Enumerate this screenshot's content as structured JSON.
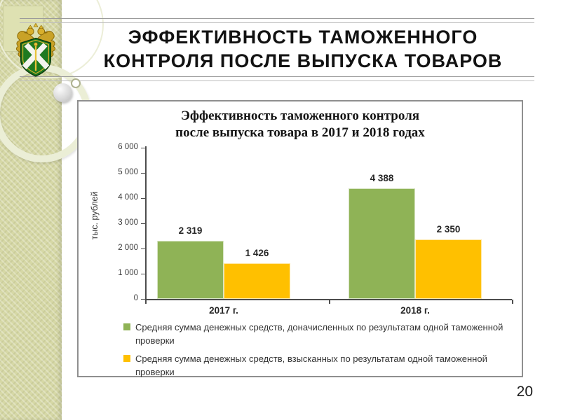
{
  "slide": {
    "title_line1": "ЭФФЕКТИВНОСТЬ ТАМОЖЕННОГО",
    "title_line2": "КОНТРОЛЯ ПОСЛЕ ВЫПУСКА ТОВАРОВ",
    "page_number": "20"
  },
  "logo": {
    "name": "russian-customs-emblem"
  },
  "chart_data": {
    "type": "bar",
    "title_lines": [
      "Эффективность таможенного контроля",
      "после выпуска товара в 2017 и 2018 годах"
    ],
    "ylabel": "тыс. рублей",
    "categories": [
      "2017 г.",
      "2018 г."
    ],
    "series": [
      {
        "name": "Средняя сумма денежных средств, доначисленных по результатам одной таможенной проверки",
        "color": "#8FB356",
        "values": [
          2319,
          4388
        ]
      },
      {
        "name": "Средняя сумма денежных средств, взысканных по результатам одной таможенной проверки",
        "color": "#FFC000",
        "values": [
          1426,
          2350
        ]
      }
    ],
    "ylim": [
      0,
      6000
    ],
    "ytick_step": 1000,
    "ytick_labels": [
      "0",
      "1 000",
      "2 000",
      "3 000",
      "4 000",
      "5 000",
      "6 000"
    ],
    "data_labels": [
      "2 319",
      "1 426",
      "4 388",
      "2 350"
    ],
    "grid": false,
    "legend_position": "bottom"
  }
}
